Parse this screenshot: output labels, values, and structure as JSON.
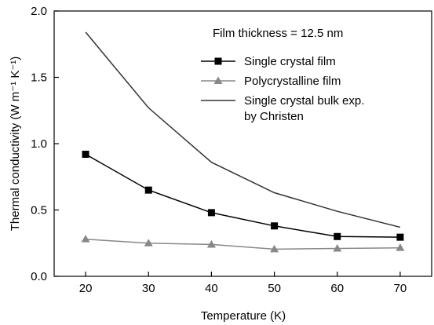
{
  "chart_data": {
    "type": "line",
    "xlabel": "Temperature (K)",
    "ylabel": "Thermal conductivity (W m⁻¹ K⁻¹)",
    "xlim": [
      15,
      75
    ],
    "ylim": [
      0.0,
      2.0
    ],
    "x_ticks": [
      20,
      30,
      40,
      50,
      60,
      70
    ],
    "x_tick_labels": [
      "20",
      "30",
      "40",
      "50",
      "60",
      "70"
    ],
    "y_ticks": [
      0.0,
      0.5,
      1.0,
      1.5,
      2.0
    ],
    "y_tick_labels": [
      "0.0",
      "0.5",
      "1.0",
      "1.5",
      "2.0"
    ],
    "grid": false,
    "legend_position": "top-right",
    "annotation": "Film thickness = 12.5 nm",
    "series": [
      {
        "name": "Single crystal film",
        "marker": "square",
        "color": "#000000",
        "x": [
          20,
          30,
          40,
          50,
          60,
          70
        ],
        "y": [
          0.92,
          0.65,
          0.48,
          0.38,
          0.3,
          0.295
        ]
      },
      {
        "name": "Polycrystalline film",
        "marker": "triangle",
        "color": "#888888",
        "x": [
          20,
          30,
          40,
          50,
          60,
          70
        ],
        "y": [
          0.28,
          0.25,
          0.24,
          0.205,
          0.21,
          0.215
        ]
      },
      {
        "name": "Single crystal bulk exp.",
        "name_line2": "by Christen",
        "marker": "none",
        "color": "#333333",
        "x": [
          20,
          30,
          40,
          50,
          60,
          70
        ],
        "y": [
          1.84,
          1.27,
          0.86,
          0.63,
          0.49,
          0.37
        ]
      }
    ]
  }
}
